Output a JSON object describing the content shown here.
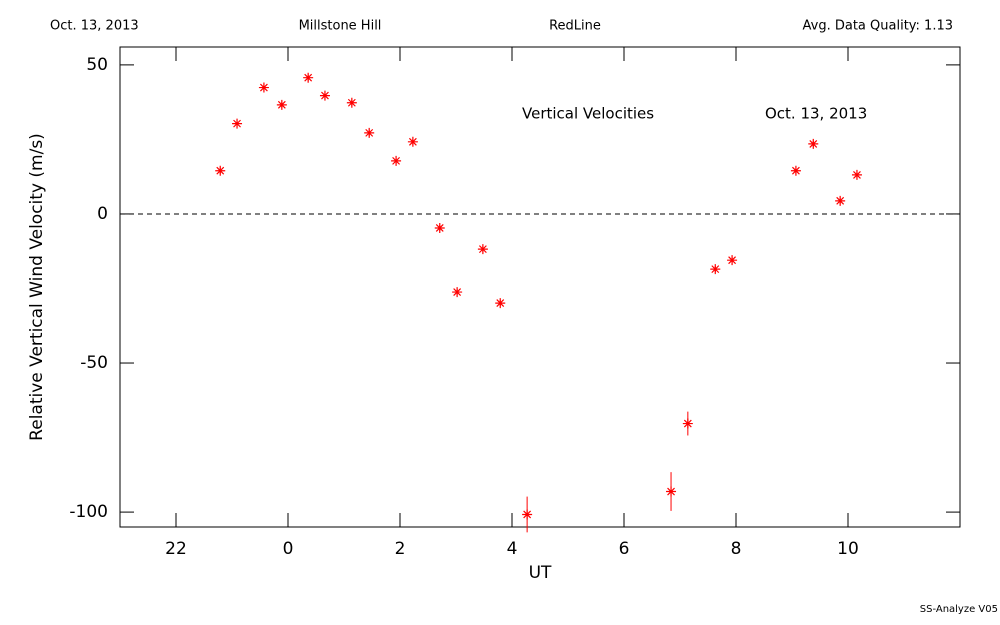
{
  "chart_data": {
    "type": "scatter",
    "header": [
      "Oct. 13, 2013",
      "Millstone Hill",
      "RedLine",
      "Avg. Data Quality: 1.13"
    ],
    "annotations": [
      "Vertical Velocities",
      "Oct. 13, 2013"
    ],
    "footer": "SS-Analyze V05",
    "x_label": "UT",
    "y_label": "Relative Vertical Wind Velocity (m/s)",
    "xlim": [
      -3,
      12
    ],
    "xticks": [
      {
        "value": -2,
        "label": "22"
      },
      0,
      2,
      4,
      6,
      8,
      10
    ],
    "ylim": [
      -105,
      56
    ],
    "yticks": [
      -100,
      -50,
      0,
      50
    ],
    "reference_line": 0,
    "color": "#ff0000",
    "x": [
      -1.21,
      -0.91,
      -0.43,
      -0.11,
      0.36,
      0.66,
      1.14,
      1.45,
      1.93,
      2.23,
      2.71,
      3.02,
      3.48,
      3.79,
      4.27,
      6.84,
      7.14,
      7.63,
      7.93,
      9.07,
      9.38,
      9.86,
      10.16
    ],
    "values": [
      14.5,
      30.3,
      42.4,
      36.6,
      45.7,
      39.7,
      37.3,
      27.2,
      17.8,
      24.2,
      -4.7,
      -26.2,
      -11.8,
      -29.9,
      -100.8,
      -93.1,
      -70.3,
      -18.5,
      -15.5,
      14.5,
      23.5,
      4.4,
      13.1
    ],
    "errors": [
      1,
      1,
      1,
      1,
      1,
      1,
      1,
      1,
      1,
      1,
      1,
      1,
      1,
      1,
      6,
      6.5,
      4,
      1,
      1,
      1,
      1,
      1,
      1
    ]
  }
}
